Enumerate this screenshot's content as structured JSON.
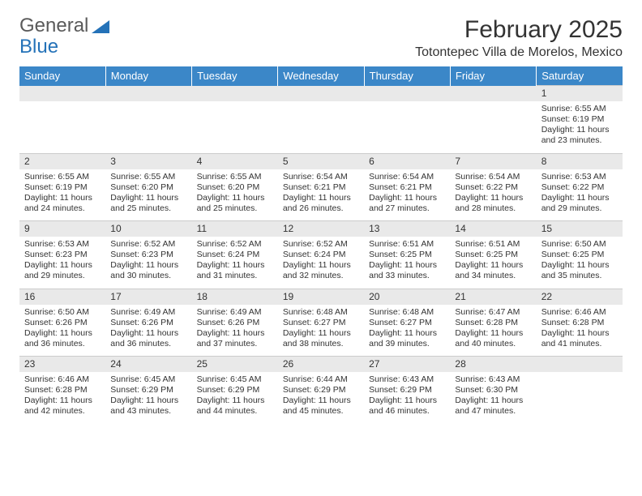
{
  "logo": {
    "word1": "General",
    "word2": "Blue"
  },
  "title": "February 2025",
  "location": "Totontepec Villa de Morelos, Mexico",
  "colors": {
    "header_bg": "#3b87c8",
    "header_fg": "#ffffff",
    "daynum_bg": "#e9e9e9",
    "rule": "#cccccc",
    "text": "#333333",
    "logo_gray": "#5a5a5a",
    "logo_blue": "#2472b8"
  },
  "weekdays": [
    "Sunday",
    "Monday",
    "Tuesday",
    "Wednesday",
    "Thursday",
    "Friday",
    "Saturday"
  ],
  "weeks": [
    [
      null,
      null,
      null,
      null,
      null,
      null,
      {
        "n": "1",
        "sunrise": "Sunrise: 6:55 AM",
        "sunset": "Sunset: 6:19 PM",
        "daylight": "Daylight: 11 hours and 23 minutes."
      }
    ],
    [
      {
        "n": "2",
        "sunrise": "Sunrise: 6:55 AM",
        "sunset": "Sunset: 6:19 PM",
        "daylight": "Daylight: 11 hours and 24 minutes."
      },
      {
        "n": "3",
        "sunrise": "Sunrise: 6:55 AM",
        "sunset": "Sunset: 6:20 PM",
        "daylight": "Daylight: 11 hours and 25 minutes."
      },
      {
        "n": "4",
        "sunrise": "Sunrise: 6:55 AM",
        "sunset": "Sunset: 6:20 PM",
        "daylight": "Daylight: 11 hours and 25 minutes."
      },
      {
        "n": "5",
        "sunrise": "Sunrise: 6:54 AM",
        "sunset": "Sunset: 6:21 PM",
        "daylight": "Daylight: 11 hours and 26 minutes."
      },
      {
        "n": "6",
        "sunrise": "Sunrise: 6:54 AM",
        "sunset": "Sunset: 6:21 PM",
        "daylight": "Daylight: 11 hours and 27 minutes."
      },
      {
        "n": "7",
        "sunrise": "Sunrise: 6:54 AM",
        "sunset": "Sunset: 6:22 PM",
        "daylight": "Daylight: 11 hours and 28 minutes."
      },
      {
        "n": "8",
        "sunrise": "Sunrise: 6:53 AM",
        "sunset": "Sunset: 6:22 PM",
        "daylight": "Daylight: 11 hours and 29 minutes."
      }
    ],
    [
      {
        "n": "9",
        "sunrise": "Sunrise: 6:53 AM",
        "sunset": "Sunset: 6:23 PM",
        "daylight": "Daylight: 11 hours and 29 minutes."
      },
      {
        "n": "10",
        "sunrise": "Sunrise: 6:52 AM",
        "sunset": "Sunset: 6:23 PM",
        "daylight": "Daylight: 11 hours and 30 minutes."
      },
      {
        "n": "11",
        "sunrise": "Sunrise: 6:52 AM",
        "sunset": "Sunset: 6:24 PM",
        "daylight": "Daylight: 11 hours and 31 minutes."
      },
      {
        "n": "12",
        "sunrise": "Sunrise: 6:52 AM",
        "sunset": "Sunset: 6:24 PM",
        "daylight": "Daylight: 11 hours and 32 minutes."
      },
      {
        "n": "13",
        "sunrise": "Sunrise: 6:51 AM",
        "sunset": "Sunset: 6:25 PM",
        "daylight": "Daylight: 11 hours and 33 minutes."
      },
      {
        "n": "14",
        "sunrise": "Sunrise: 6:51 AM",
        "sunset": "Sunset: 6:25 PM",
        "daylight": "Daylight: 11 hours and 34 minutes."
      },
      {
        "n": "15",
        "sunrise": "Sunrise: 6:50 AM",
        "sunset": "Sunset: 6:25 PM",
        "daylight": "Daylight: 11 hours and 35 minutes."
      }
    ],
    [
      {
        "n": "16",
        "sunrise": "Sunrise: 6:50 AM",
        "sunset": "Sunset: 6:26 PM",
        "daylight": "Daylight: 11 hours and 36 minutes."
      },
      {
        "n": "17",
        "sunrise": "Sunrise: 6:49 AM",
        "sunset": "Sunset: 6:26 PM",
        "daylight": "Daylight: 11 hours and 36 minutes."
      },
      {
        "n": "18",
        "sunrise": "Sunrise: 6:49 AM",
        "sunset": "Sunset: 6:26 PM",
        "daylight": "Daylight: 11 hours and 37 minutes."
      },
      {
        "n": "19",
        "sunrise": "Sunrise: 6:48 AM",
        "sunset": "Sunset: 6:27 PM",
        "daylight": "Daylight: 11 hours and 38 minutes."
      },
      {
        "n": "20",
        "sunrise": "Sunrise: 6:48 AM",
        "sunset": "Sunset: 6:27 PM",
        "daylight": "Daylight: 11 hours and 39 minutes."
      },
      {
        "n": "21",
        "sunrise": "Sunrise: 6:47 AM",
        "sunset": "Sunset: 6:28 PM",
        "daylight": "Daylight: 11 hours and 40 minutes."
      },
      {
        "n": "22",
        "sunrise": "Sunrise: 6:46 AM",
        "sunset": "Sunset: 6:28 PM",
        "daylight": "Daylight: 11 hours and 41 minutes."
      }
    ],
    [
      {
        "n": "23",
        "sunrise": "Sunrise: 6:46 AM",
        "sunset": "Sunset: 6:28 PM",
        "daylight": "Daylight: 11 hours and 42 minutes."
      },
      {
        "n": "24",
        "sunrise": "Sunrise: 6:45 AM",
        "sunset": "Sunset: 6:29 PM",
        "daylight": "Daylight: 11 hours and 43 minutes."
      },
      {
        "n": "25",
        "sunrise": "Sunrise: 6:45 AM",
        "sunset": "Sunset: 6:29 PM",
        "daylight": "Daylight: 11 hours and 44 minutes."
      },
      {
        "n": "26",
        "sunrise": "Sunrise: 6:44 AM",
        "sunset": "Sunset: 6:29 PM",
        "daylight": "Daylight: 11 hours and 45 minutes."
      },
      {
        "n": "27",
        "sunrise": "Sunrise: 6:43 AM",
        "sunset": "Sunset: 6:29 PM",
        "daylight": "Daylight: 11 hours and 46 minutes."
      },
      {
        "n": "28",
        "sunrise": "Sunrise: 6:43 AM",
        "sunset": "Sunset: 6:30 PM",
        "daylight": "Daylight: 11 hours and 47 minutes."
      },
      null
    ]
  ]
}
